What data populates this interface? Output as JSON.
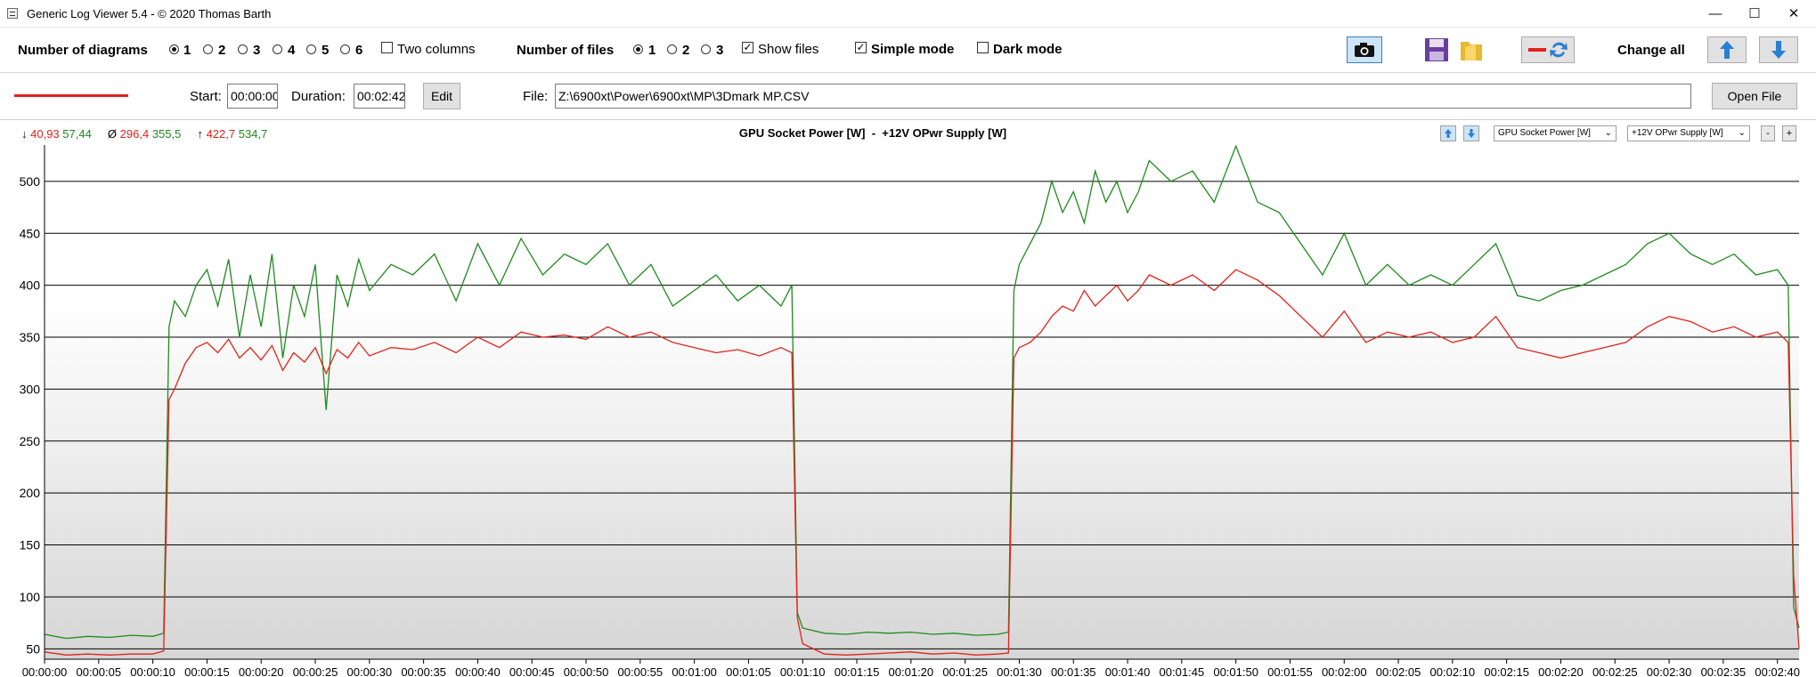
{
  "window": {
    "title": "Generic Log Viewer 5.4 - © 2020 Thomas Barth",
    "minimize": "—",
    "maximize": "☐",
    "close": "✕"
  },
  "toolbar": {
    "num_diagrams_label": "Number of diagrams",
    "diagram_options": [
      "1",
      "2",
      "3",
      "4",
      "5",
      "6"
    ],
    "diagram_selected": "1",
    "two_columns_label": "Two columns",
    "num_files_label": "Number of files",
    "file_options": [
      "1",
      "2",
      "3"
    ],
    "files_selected": "1",
    "show_files_label": "Show files",
    "show_files_checked": "✓",
    "simple_mode_label": "Simple mode",
    "simple_mode_checked": "✓",
    "dark_mode_label": "Dark mode",
    "change_all_label": "Change all",
    "icons": [
      "camera-icon",
      "save-icon",
      "folder-icon",
      "swap-colors-icon",
      "arrow-up-icon",
      "arrow-down-icon"
    ]
  },
  "file_row": {
    "line_color": "#e2231a",
    "start_label": "Start:",
    "start_value": "00:00:00",
    "duration_label": "Duration:",
    "duration_value": "00:02:42",
    "edit_label": "Edit",
    "file_label": "File:",
    "file_path": "Z:\\6900xt\\Power\\6900xt\\MP\\3Dmark MP.CSV",
    "open_file_label": "Open File"
  },
  "chart_header": {
    "min_label": "↓",
    "min_red": "40,93",
    "min_green": "57,44",
    "avg_label": "Ø",
    "avg_red": "296,4",
    "avg_green": "355,5",
    "max_label": "↑",
    "max_red": "422,7",
    "max_green": "534,7",
    "title": "GPU Socket Power [W]  -  +12V OPwr Supply [W]",
    "series1_select": "GPU Socket Power [W]",
    "series2_select": "+12V OPwr Supply [W]",
    "minus_label": "-",
    "plus_label": "+"
  },
  "chart_data": {
    "type": "line",
    "title": "GPU Socket Power [W]  -  +12V OPwr Supply [W]",
    "ylim": [
      40,
      535
    ],
    "yticks": [
      50,
      100,
      150,
      200,
      250,
      300,
      350,
      400,
      450,
      500
    ],
    "xlim": [
      0,
      162
    ],
    "xticks_seconds": [
      0,
      5,
      10,
      15,
      20,
      25,
      30,
      35,
      40,
      45,
      50,
      55,
      60,
      65,
      70,
      75,
      80,
      85,
      90,
      95,
      100,
      105,
      110,
      115,
      120,
      125,
      130,
      135,
      140,
      145,
      150,
      155,
      160
    ],
    "xtick_labels": [
      "00:00:00",
      "00:00:05",
      "00:00:10",
      "00:00:15",
      "00:00:20",
      "00:00:25",
      "00:00:30",
      "00:00:35",
      "00:00:40",
      "00:00:45",
      "00:00:50",
      "00:00:55",
      "00:01:00",
      "00:01:05",
      "00:01:10",
      "00:01:15",
      "00:01:20",
      "00:01:25",
      "00:01:30",
      "00:01:35",
      "00:01:40",
      "00:01:45",
      "00:01:50",
      "00:01:55",
      "00:02:00",
      "00:02:05",
      "00:02:10",
      "00:02:15",
      "00:02:20",
      "00:02:25",
      "00:02:30",
      "00:02:35",
      "00:02:40"
    ],
    "grid": true,
    "series": [
      {
        "name": "GPU Socket Power [W]",
        "color": "#e2231a",
        "x": [
          0,
          2,
          4,
          6,
          8,
          10,
          11,
          11.5,
          12,
          13,
          14,
          15,
          16,
          17,
          18,
          19,
          20,
          21,
          22,
          23,
          24,
          25,
          26,
          27,
          28,
          29,
          30,
          32,
          34,
          36,
          38,
          40,
          42,
          44,
          46,
          48,
          50,
          52,
          54,
          56,
          58,
          60,
          62,
          64,
          66,
          68,
          69,
          69.5,
          70,
          72,
          74,
          76,
          78,
          80,
          82,
          84,
          86,
          88,
          89,
          89.5,
          90,
          91,
          92,
          93,
          94,
          95,
          96,
          97,
          98,
          99,
          100,
          101,
          102,
          104,
          106,
          108,
          110,
          112,
          114,
          116,
          118,
          120,
          122,
          124,
          126,
          128,
          130,
          132,
          134,
          136,
          138,
          140,
          142,
          144,
          146,
          148,
          150,
          152,
          154,
          156,
          158,
          160,
          161,
          161.5,
          162
        ],
        "y": [
          47,
          44,
          45,
          44,
          45,
          45,
          48,
          290,
          300,
          325,
          340,
          345,
          335,
          348,
          330,
          340,
          328,
          342,
          318,
          335,
          326,
          340,
          315,
          338,
          330,
          345,
          332,
          340,
          338,
          345,
          335,
          350,
          340,
          355,
          350,
          352,
          348,
          360,
          350,
          355,
          345,
          340,
          335,
          338,
          332,
          340,
          335,
          80,
          55,
          45,
          44,
          45,
          46,
          47,
          45,
          46,
          44,
          45,
          46,
          330,
          340,
          345,
          355,
          370,
          380,
          375,
          395,
          380,
          390,
          400,
          385,
          395,
          410,
          400,
          410,
          395,
          415,
          405,
          390,
          370,
          350,
          375,
          345,
          355,
          350,
          355,
          345,
          350,
          370,
          340,
          335,
          330,
          335,
          340,
          345,
          360,
          370,
          365,
          355,
          360,
          350,
          355,
          345,
          120,
          50
        ]
      },
      {
        "name": "+12V OPwr Supply [W]",
        "color": "#1e8a1e",
        "x": [
          0,
          2,
          4,
          6,
          8,
          10,
          11,
          11.5,
          12,
          13,
          14,
          15,
          16,
          17,
          18,
          19,
          20,
          21,
          22,
          23,
          24,
          25,
          26,
          27,
          28,
          29,
          30,
          32,
          34,
          36,
          38,
          40,
          42,
          44,
          46,
          48,
          50,
          52,
          54,
          56,
          58,
          60,
          62,
          64,
          66,
          68,
          69,
          69.5,
          70,
          72,
          74,
          76,
          78,
          80,
          82,
          84,
          86,
          88,
          89,
          89.5,
          90,
          91,
          92,
          93,
          94,
          95,
          96,
          97,
          98,
          99,
          100,
          101,
          102,
          104,
          106,
          108,
          110,
          112,
          114,
          116,
          118,
          120,
          122,
          124,
          126,
          128,
          130,
          132,
          134,
          136,
          138,
          140,
          142,
          144,
          146,
          148,
          150,
          152,
          154,
          156,
          158,
          160,
          161,
          161.5,
          162
        ],
        "y": [
          64,
          60,
          62,
          61,
          63,
          62,
          65,
          360,
          385,
          370,
          400,
          415,
          380,
          425,
          350,
          410,
          360,
          430,
          330,
          400,
          370,
          420,
          280,
          410,
          380,
          425,
          395,
          420,
          410,
          430,
          385,
          440,
          400,
          445,
          410,
          430,
          420,
          440,
          400,
          420,
          380,
          395,
          410,
          385,
          400,
          380,
          400,
          85,
          70,
          65,
          64,
          66,
          65,
          66,
          64,
          65,
          63,
          64,
          66,
          395,
          420,
          440,
          460,
          500,
          470,
          490,
          460,
          510,
          480,
          500,
          470,
          490,
          520,
          500,
          510,
          480,
          534,
          480,
          470,
          440,
          410,
          450,
          400,
          420,
          400,
          410,
          400,
          420,
          440,
          390,
          385,
          395,
          400,
          410,
          420,
          440,
          450,
          430,
          420,
          430,
          410,
          415,
          400,
          90,
          70
        ]
      }
    ]
  }
}
